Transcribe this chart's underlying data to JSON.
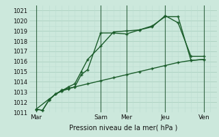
{
  "xlabel": "Pression niveau de la mer( hPa )",
  "bg_color": "#cce8dc",
  "grid_major_color": "#aacfbf",
  "grid_minor_color": "#bbddd0",
  "vline_color": "#336644",
  "line_color": "#1a5c2a",
  "ylim": [
    1011,
    1021.5
  ],
  "xlim": [
    0,
    14.5
  ],
  "xtick_labels": [
    "Mar",
    "Sam",
    "Mer",
    "Jeu",
    "Ven"
  ],
  "xtick_positions": [
    0.5,
    5.5,
    7.5,
    10.5,
    13.5
  ],
  "ytick_positions": [
    1011,
    1012,
    1013,
    1014,
    1015,
    1016,
    1017,
    1018,
    1019,
    1020,
    1021
  ],
  "vline_positions": [
    0.5,
    5.5,
    7.5,
    10.5,
    13.5
  ],
  "line1_x": [
    0.5,
    1.0,
    1.5,
    2.0,
    2.5,
    3.0,
    3.5,
    4.0,
    4.5,
    5.5,
    6.5,
    7.5,
    8.5,
    9.5,
    10.5,
    11.5,
    12.5,
    13.5
  ],
  "line1_y": [
    1011.3,
    1011.2,
    1012.2,
    1012.8,
    1013.1,
    1013.3,
    1013.5,
    1014.7,
    1015.2,
    1018.8,
    1018.8,
    1018.7,
    1019.1,
    1019.4,
    1020.5,
    1019.8,
    1016.5,
    1016.5
  ],
  "line2_x": [
    0.5,
    1.0,
    1.5,
    2.0,
    2.5,
    3.0,
    3.5,
    4.0,
    4.5,
    5.5,
    6.5,
    7.5,
    8.5,
    9.5,
    10.5,
    11.5,
    12.5,
    13.5
  ],
  "line2_y": [
    1011.3,
    1011.2,
    1012.2,
    1012.8,
    1013.1,
    1013.5,
    1013.8,
    1015.0,
    1016.2,
    1017.5,
    1018.9,
    1019.0,
    1019.1,
    1019.5,
    1020.4,
    1020.4,
    1016.1,
    1016.2
  ],
  "line3_x": [
    0.5,
    1.5,
    2.5,
    3.5,
    4.5,
    5.5,
    6.5,
    7.5,
    8.5,
    9.5,
    10.5,
    11.5,
    12.5,
    13.5
  ],
  "line3_y": [
    1011.3,
    1012.3,
    1013.2,
    1013.5,
    1013.8,
    1014.1,
    1014.4,
    1014.7,
    1015.0,
    1015.3,
    1015.6,
    1015.9,
    1016.1,
    1016.2
  ]
}
